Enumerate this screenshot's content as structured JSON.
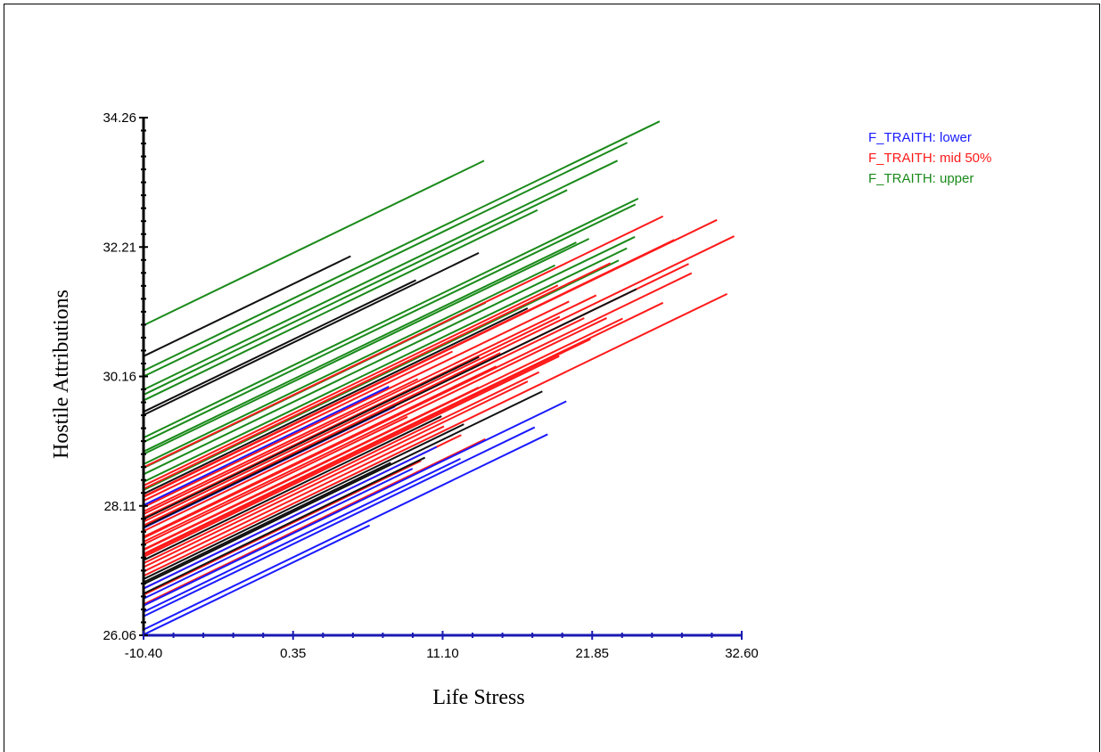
{
  "chart_data": {
    "type": "line",
    "title": "",
    "xlabel": "Life Stress",
    "ylabel": "Hostile Attributions",
    "xlim": [
      -10.4,
      32.6
    ],
    "ylim": [
      26.06,
      34.26
    ],
    "xticks": [
      "-10.40",
      "0.35",
      "11.10",
      "21.85",
      "32.60"
    ],
    "yticks": [
      "26.06",
      "28.11",
      "30.16",
      "32.21",
      "34.26"
    ],
    "slope": 0.1065,
    "grid": false,
    "legend_position": "top-right",
    "legend": [
      {
        "label": "F_TRAITH: lower",
        "color": "#1a1aff"
      },
      {
        "label": "F_TRAITH: mid 50%",
        "color": "#ff1a1a"
      },
      {
        "label": "F_TRAITH: upper",
        "color": "#1a8a1a"
      }
    ],
    "series": [
      {
        "group": "upper",
        "color": "#1a8a1a",
        "lines": [
          {
            "intercept": 30.97,
            "x_end": 14.08
          },
          {
            "intercept": 30.16,
            "x_end": 24.37
          },
          {
            "intercept": 30.25,
            "x_end": 26.7
          },
          {
            "intercept": 29.78,
            "x_end": 17.92
          },
          {
            "intercept": 29.95,
            "x_end": 23.67
          },
          {
            "intercept": 29.87,
            "x_end": 20.05
          },
          {
            "intercept": 29.19,
            "x_end": 25.16
          },
          {
            "intercept": 29.12,
            "x_end": 24.96
          },
          {
            "intercept": 28.77,
            "x_end": 19.18
          },
          {
            "intercept": 28.93,
            "x_end": 21.62
          },
          {
            "intercept": 28.61,
            "x_end": 24.92
          },
          {
            "intercept": 28.36,
            "x_end": 23.76
          },
          {
            "intercept": 28.49,
            "x_end": 24.35
          },
          {
            "intercept": 28.97,
            "x_end": 20.71
          },
          {
            "intercept": 28.71,
            "x_end": 14.19
          },
          {
            "intercept": 28.37,
            "x_end": 21.75
          }
        ]
      },
      {
        "group": "mid",
        "color": "#ff1a1a",
        "lines": [
          {
            "intercept": 28.72,
            "x_end": 26.94
          },
          {
            "intercept": 28.25,
            "x_end": 30.82
          },
          {
            "intercept": 27.86,
            "x_end": 32.06
          },
          {
            "intercept": 28.38,
            "x_end": 23.16
          },
          {
            "intercept": 28.26,
            "x_end": 27.76
          },
          {
            "intercept": 27.77,
            "x_end": 28.79
          },
          {
            "intercept": 27.6,
            "x_end": 29.0
          },
          {
            "intercept": 27.35,
            "x_end": 26.94
          },
          {
            "intercept": 27.0,
            "x_end": 31.55
          },
          {
            "intercept": 28.43,
            "x_end": 19.39
          },
          {
            "intercept": 28.09,
            "x_end": 20.19
          },
          {
            "intercept": 27.92,
            "x_end": 19.52
          },
          {
            "intercept": 27.98,
            "x_end": 22.14
          },
          {
            "intercept": 27.71,
            "x_end": 21.28
          },
          {
            "intercept": 27.54,
            "x_end": 22.89
          },
          {
            "intercept": 27.41,
            "x_end": 24.04
          },
          {
            "intercept": 27.33,
            "x_end": 21.73
          },
          {
            "intercept": 27.3,
            "x_end": 19.48
          },
          {
            "intercept": 27.2,
            "x_end": 18.03
          },
          {
            "intercept": 27.14,
            "x_end": 17.22
          },
          {
            "intercept": 27.8,
            "x_end": 15.25
          },
          {
            "intercept": 27.62,
            "x_end": 14.96
          },
          {
            "intercept": 27.42,
            "x_end": 13.68
          },
          {
            "intercept": 27.07,
            "x_end": 11.2
          },
          {
            "intercept": 26.8,
            "x_end": 12.44
          },
          {
            "intercept": 26.55,
            "x_end": 14.18
          },
          {
            "intercept": 26.7,
            "x_end": 9.55
          },
          {
            "intercept": 28.02,
            "x_end": 9.31
          },
          {
            "intercept": 28.19,
            "x_end": 11.81
          },
          {
            "intercept": 27.5,
            "x_end": 8.57
          }
        ]
      },
      {
        "group": "lower",
        "color": "#1a1aff",
        "lines": [
          {
            "intercept": 26.53,
            "x_end": 19.99
          },
          {
            "intercept": 26.36,
            "x_end": 17.72
          },
          {
            "intercept": 26.15,
            "x_end": 18.65
          },
          {
            "intercept": 26.8,
            "x_end": 10.68
          },
          {
            "intercept": 26.43,
            "x_end": 12.38
          },
          {
            "intercept": 26.64,
            "x_end": 8.94
          },
          {
            "intercept": 26.07,
            "x_end": 5.85
          },
          {
            "intercept": 27.76,
            "x_end": 7.68
          },
          {
            "intercept": 28.12,
            "x_end": 7.24
          }
        ]
      },
      {
        "group": "unlabeled",
        "color": "#111111",
        "lines": [
          {
            "intercept": 30.48,
            "x_end": 4.49
          },
          {
            "intercept": 29.6,
            "x_end": 9.18
          },
          {
            "intercept": 29.55,
            "x_end": 13.7
          },
          {
            "intercept": 26.87,
            "x_end": 18.27
          },
          {
            "intercept": 26.95,
            "x_end": 12.63
          },
          {
            "intercept": 27.25,
            "x_end": 11.02
          },
          {
            "intercept": 26.9,
            "x_end": 7.38
          },
          {
            "intercept": 26.72,
            "x_end": 9.83
          },
          {
            "intercept": 27.77,
            "x_end": 25.03
          },
          {
            "intercept": 27.9,
            "x_end": 13.72
          },
          {
            "intercept": 28.3,
            "x_end": 17.21
          }
        ]
      }
    ]
  }
}
